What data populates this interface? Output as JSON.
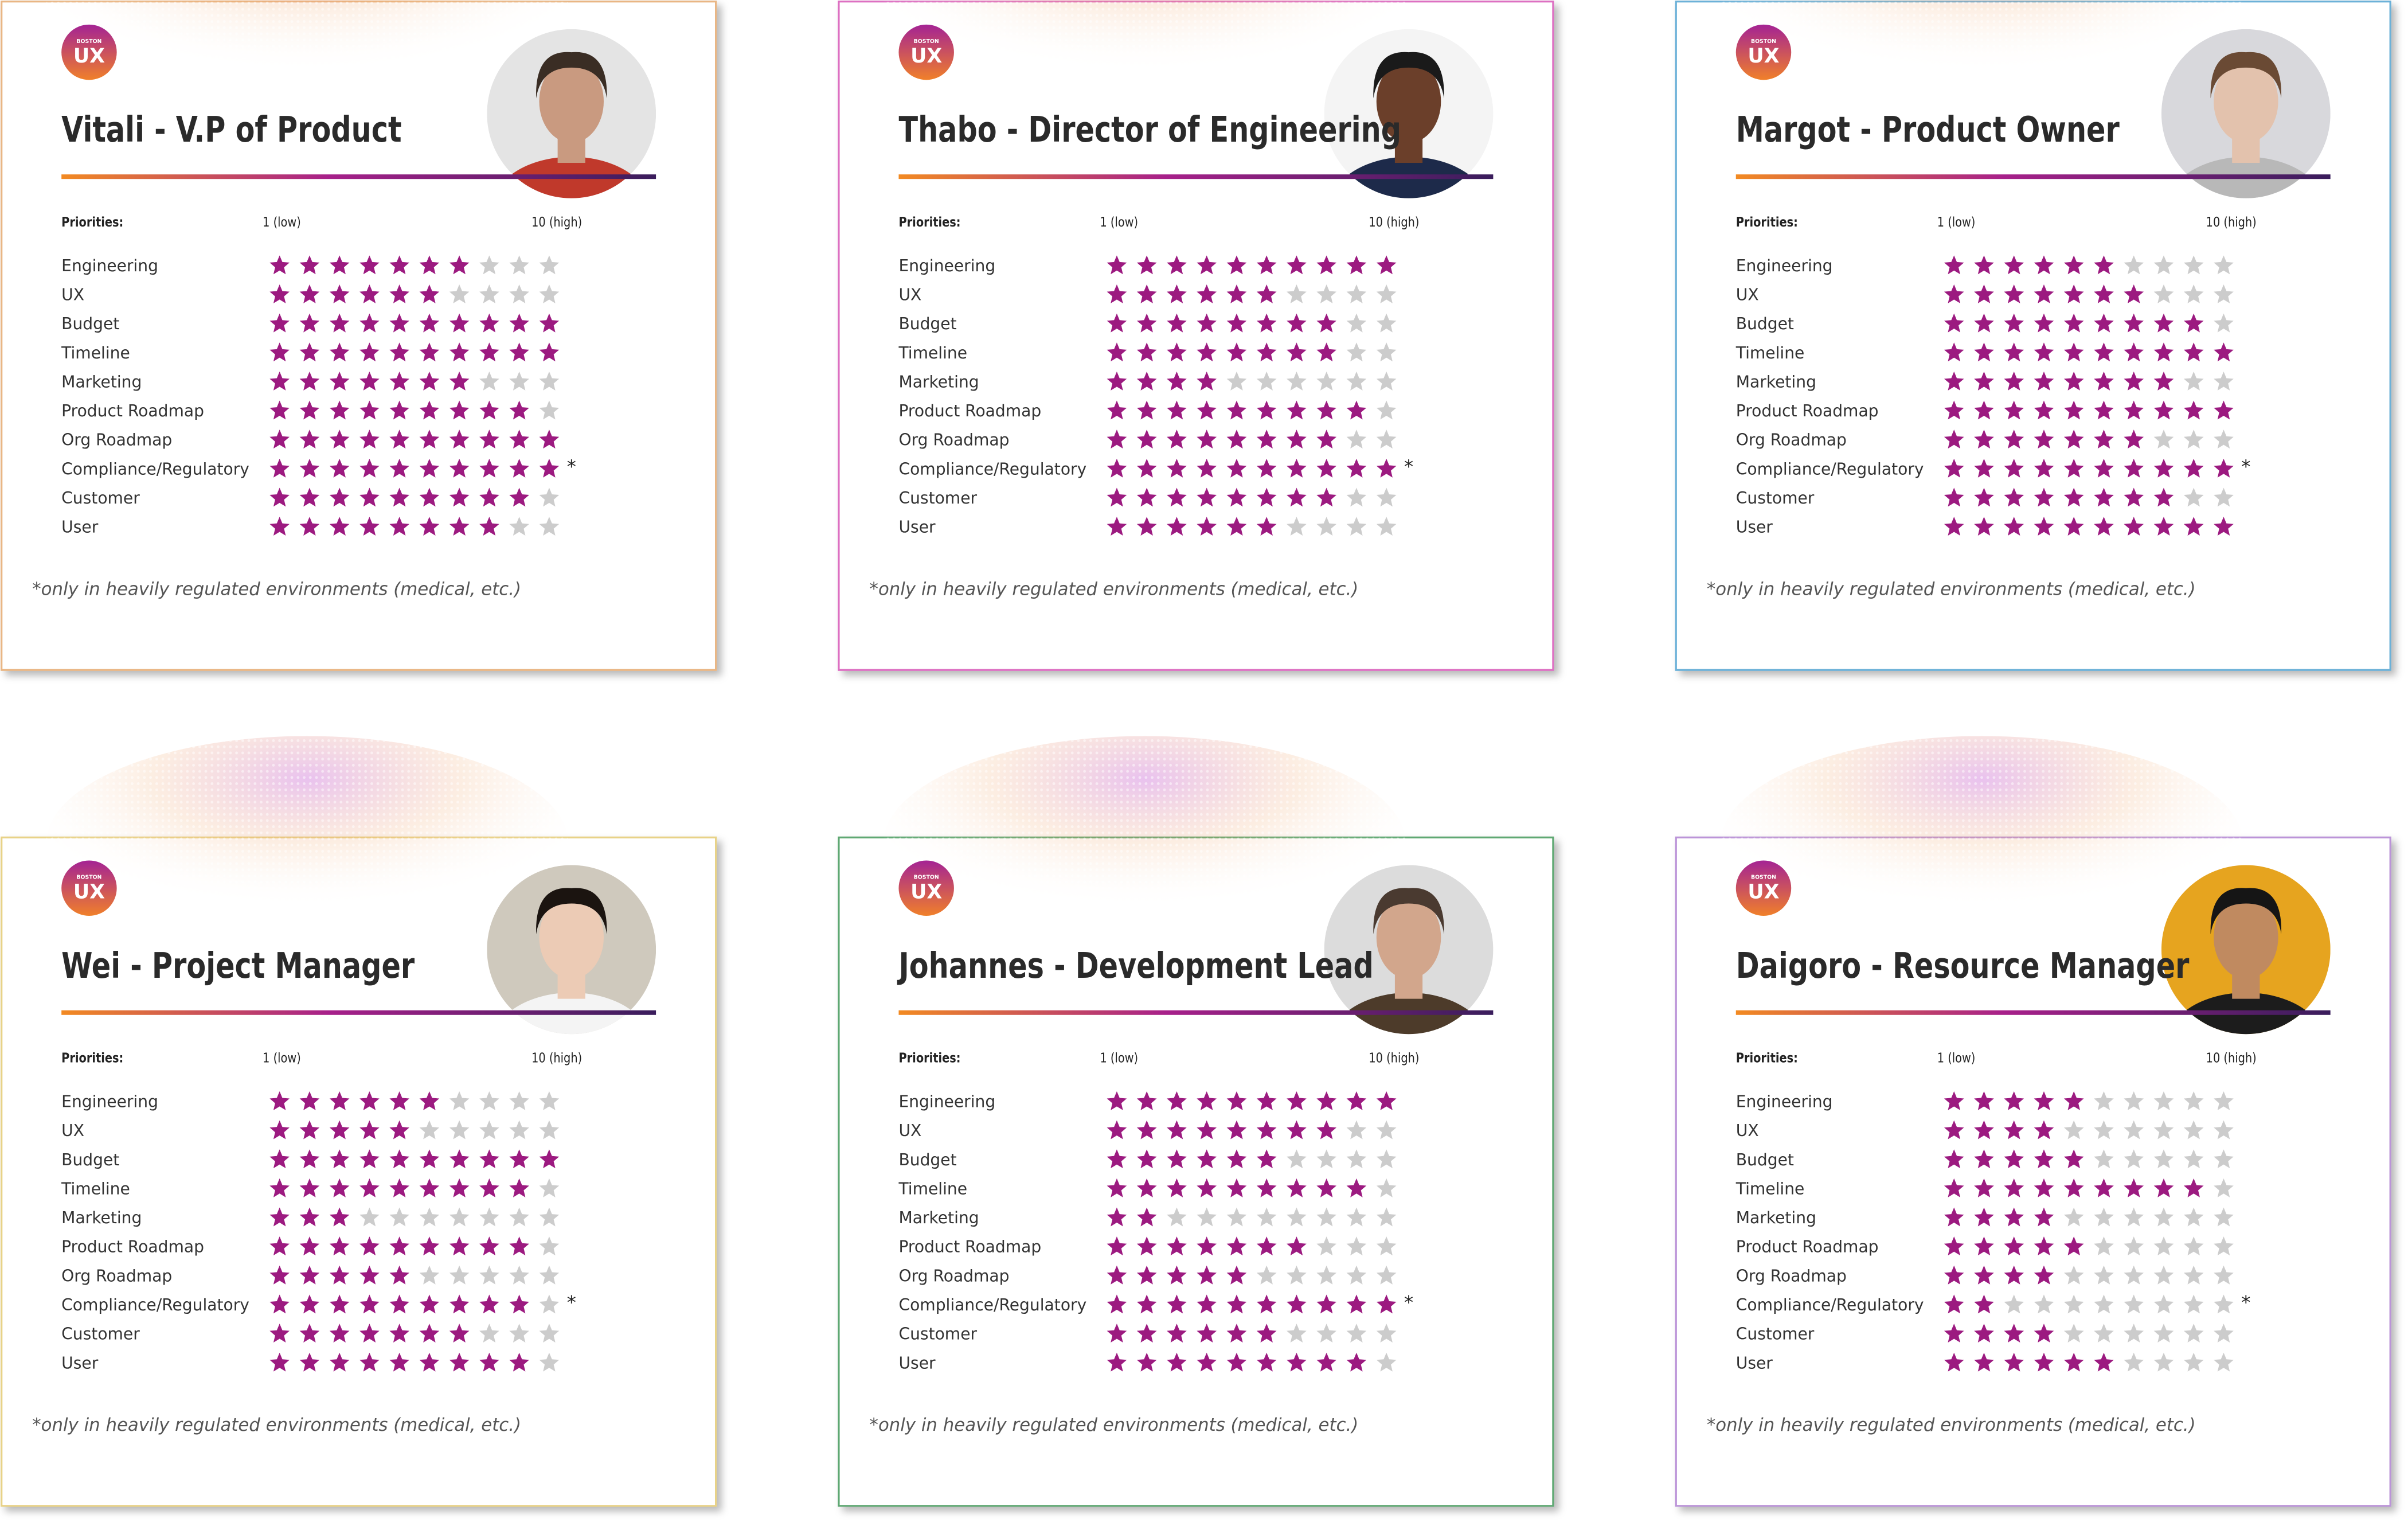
{
  "header": {
    "logo_top": "BOSTON",
    "logo_main": "UX",
    "priorities_label": "Priorities:"
  },
  "scale": {
    "low": {
      "value": 1,
      "label": "1 (low)"
    },
    "high": {
      "value": 10,
      "label": "10 (high)"
    }
  },
  "priorities": [
    {
      "label": "Engineering"
    },
    {
      "label": "UX"
    },
    {
      "label": "Budget"
    },
    {
      "label": "Timeline"
    },
    {
      "label": "Marketing"
    },
    {
      "label": "Product Roadmap"
    },
    {
      "label": "Org Roadmap"
    },
    {
      "label": "Compliance/Regulatory",
      "note": "*"
    },
    {
      "label": "Customer"
    },
    {
      "label": "User"
    }
  ],
  "footnote": "*only in heavily regulated environments (medical, etc.)",
  "star_color": "#9c1a80",
  "empty_star_color": "#cccccc",
  "cards": [
    {
      "title": "Vitali - V.P of Product",
      "border_color": "#e9b684",
      "ratings": [
        7,
        6,
        10,
        10,
        7,
        9,
        10,
        10,
        9,
        8
      ]
    },
    {
      "title": "Thabo - Director of Engineering",
      "border_color": "#dd6fc2",
      "ratings": [
        10,
        6,
        8,
        8,
        4,
        9,
        8,
        10,
        8,
        6
      ]
    },
    {
      "title": "Margot - Product Owner",
      "border_color": "#6cb1d8",
      "ratings": [
        6,
        7,
        9,
        10,
        8,
        10,
        7,
        10,
        8,
        10
      ]
    },
    {
      "title": "Wei - Project Manager",
      "border_color": "#e8d287",
      "ratings": [
        6,
        5,
        10,
        9,
        3,
        9,
        5,
        9,
        7,
        9
      ]
    },
    {
      "title": "Johannes - Development Lead",
      "border_color": "#5fa873",
      "ratings": [
        10,
        8,
        6,
        9,
        2,
        7,
        5,
        10,
        6,
        9
      ]
    },
    {
      "title": "Daigoro - Resource Manager",
      "border_color": "#bb94d8",
      "ratings": [
        5,
        4,
        5,
        9,
        4,
        5,
        4,
        2,
        4,
        6
      ]
    }
  ]
}
